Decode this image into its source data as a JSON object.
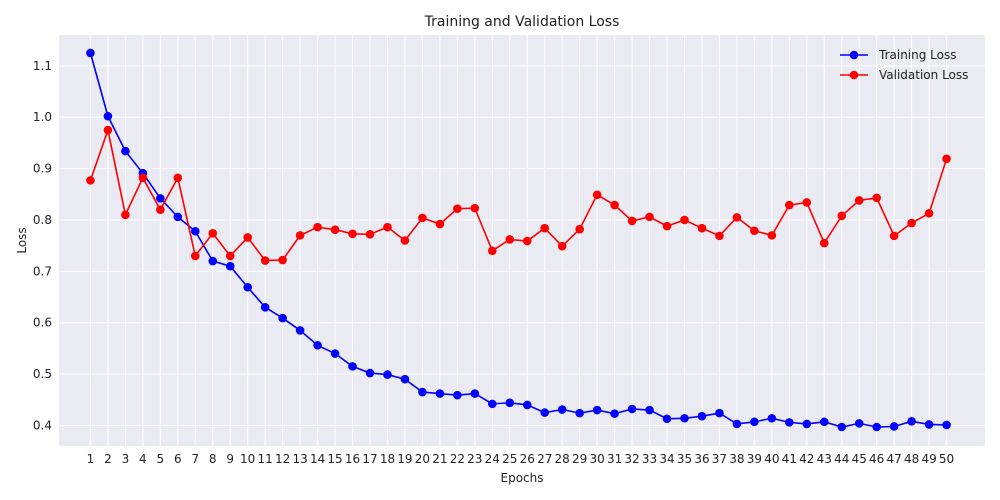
{
  "chart_data": {
    "type": "line",
    "title": "Training and Validation Loss",
    "xlabel": "Epochs",
    "ylabel": "Loss",
    "x": [
      1,
      2,
      3,
      4,
      5,
      6,
      7,
      8,
      9,
      10,
      11,
      12,
      13,
      14,
      15,
      16,
      17,
      18,
      19,
      20,
      21,
      22,
      23,
      24,
      25,
      26,
      27,
      28,
      29,
      30,
      31,
      32,
      33,
      34,
      35,
      36,
      37,
      38,
      39,
      40,
      41,
      42,
      43,
      44,
      45,
      46,
      47,
      48,
      49,
      50
    ],
    "yticks": [
      0.4,
      0.5,
      0.6,
      0.7,
      0.8,
      0.9,
      1.0,
      1.1
    ],
    "ylim": [
      0.36,
      1.16
    ],
    "xlim": [
      -0.8,
      52.2
    ],
    "grid": true,
    "legend_position": "top-right",
    "series": [
      {
        "name": "Training Loss",
        "color": "#0000ff",
        "values": [
          1.125,
          1.002,
          0.934,
          0.891,
          0.842,
          0.806,
          0.778,
          0.72,
          0.71,
          0.669,
          0.63,
          0.609,
          0.585,
          0.556,
          0.54,
          0.515,
          0.502,
          0.499,
          0.49,
          0.465,
          0.462,
          0.459,
          0.462,
          0.442,
          0.444,
          0.44,
          0.425,
          0.431,
          0.424,
          0.43,
          0.423,
          0.432,
          0.43,
          0.413,
          0.414,
          0.418,
          0.424,
          0.403,
          0.407,
          0.414,
          0.406,
          0.403,
          0.407,
          0.397,
          0.404,
          0.397,
          0.398,
          0.408,
          0.402,
          0.401
        ]
      },
      {
        "name": "Validation Loss",
        "color": "#ff0000",
        "values": [
          0.877,
          0.975,
          0.81,
          0.882,
          0.82,
          0.882,
          0.73,
          0.774,
          0.73,
          0.766,
          0.721,
          0.722,
          0.77,
          0.786,
          0.781,
          0.773,
          0.772,
          0.786,
          0.76,
          0.804,
          0.792,
          0.822,
          0.823,
          0.74,
          0.762,
          0.759,
          0.784,
          0.749,
          0.782,
          0.849,
          0.829,
          0.798,
          0.806,
          0.788,
          0.8,
          0.784,
          0.769,
          0.805,
          0.779,
          0.77,
          0.829,
          0.834,
          0.755,
          0.808,
          0.838,
          0.843,
          0.769,
          0.794,
          0.813,
          0.919
        ]
      }
    ]
  }
}
